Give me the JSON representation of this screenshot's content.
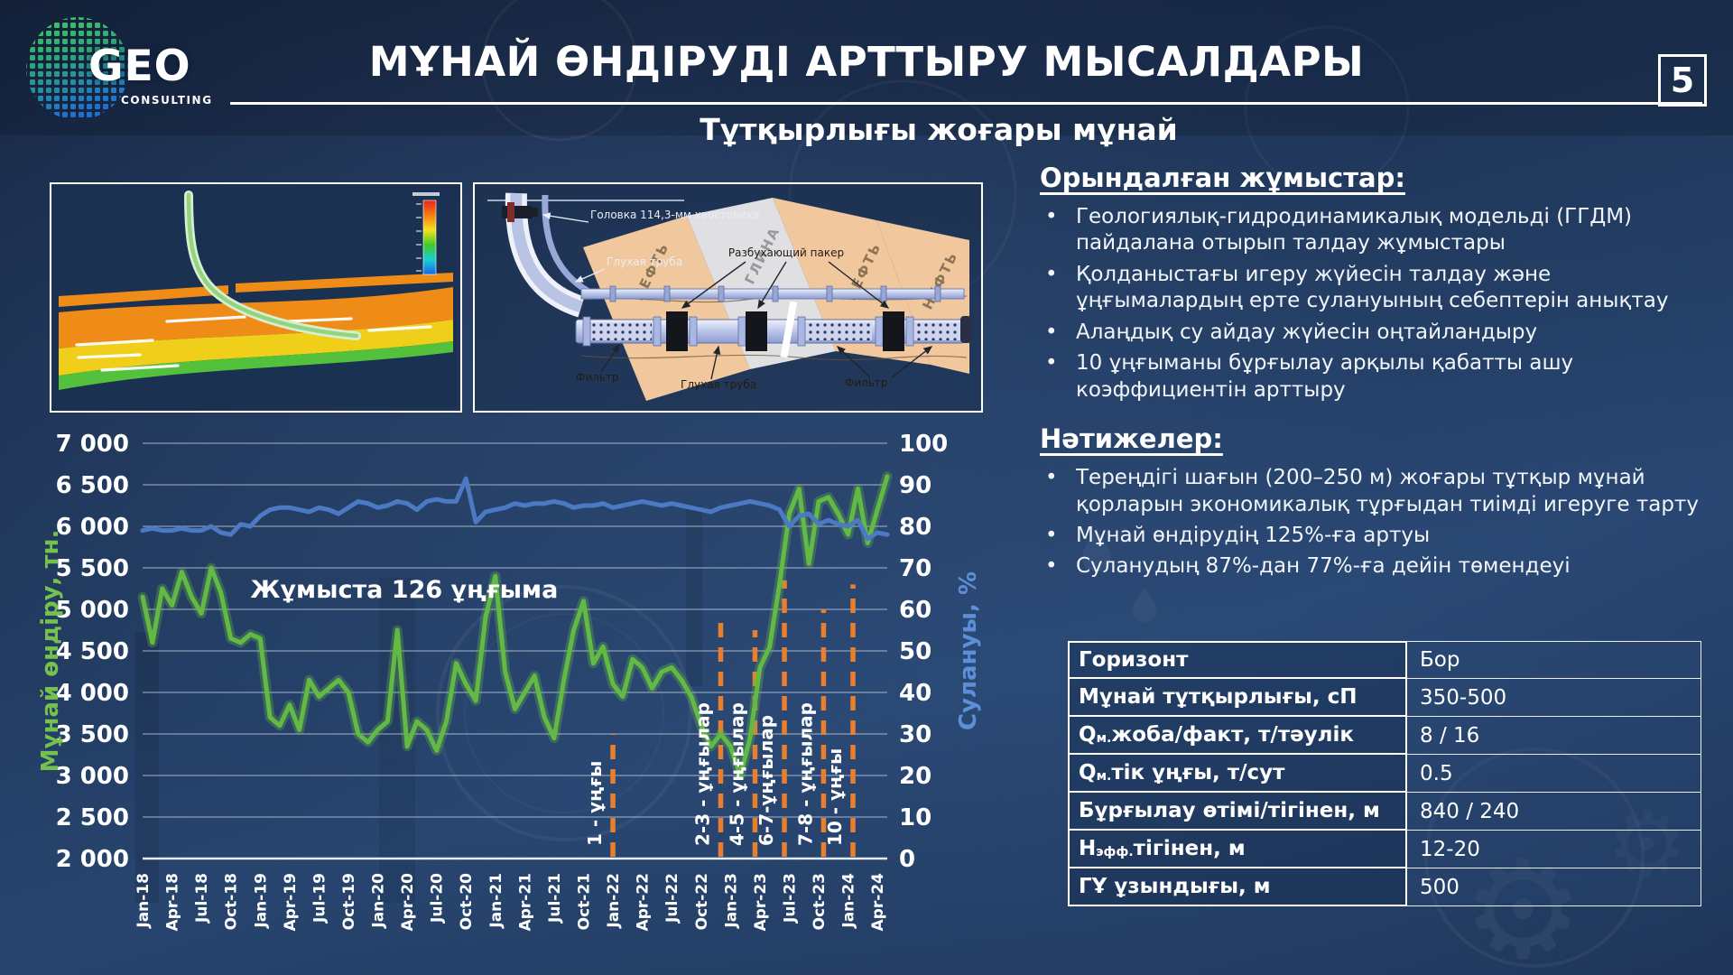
{
  "bullet_char": "•",
  "slide": {
    "logo": {
      "brand": "GEO",
      "tagline": "CONSULTING"
    },
    "title": "МҰНАЙ ӨНДІРУДІ АРТТЫРУ МЫСАЛДАРЫ",
    "slide_number": "5",
    "subtitle": "Тұтқырлығы жоғары мұнай"
  },
  "schematic_labels": {
    "oil_1": "НЕФТЬ",
    "clay": "ГЛИНА",
    "oil_2": "НЕФТЬ",
    "oil_3": "НЕФТЬ",
    "liner_head": "Головка 114,3-мм хвостовика",
    "blind_pipe_top": "Глухая труба",
    "swell_packer": "Разбухающий пакер",
    "filter_left": "Фильтр",
    "blind_pipe_bottom": "Глухая труба",
    "filter_right": "Фильтр"
  },
  "completed_works": {
    "heading": "Орындалған жұмыстар:",
    "items": [
      "Геологиялық-гидродинамикалық модельді (ГГДМ) пайдалана отырып талдау жұмыстары",
      "Қолданыстағы игеру жүйесін талдау және ұңғымалардың ерте сулануының себептерін анықтау",
      "Алаңдық су айдау жүйесін оңтайландыру",
      "10 ұңғыманы бұрғылау арқылы қабатты ашу коэффициентін арттыру"
    ]
  },
  "results": {
    "heading": "Нәтижелер:",
    "items": [
      "Тереңдігі шағын (200–250 м) жоғары тұтқыр мұнай қорларын экономикалық тұрғыдан тиімді игеруге тарту",
      "Мұнай өндірудің 125%-ға артуы",
      "Суланудың 87%-дан 77%-ға дейін төмендеуі"
    ]
  },
  "spec_table": {
    "rows": [
      {
        "p1": "Горизонт",
        "sub": "",
        "p2": "",
        "value": "Бор"
      },
      {
        "p1": "Мұнай тұтқырлығы, сП",
        "sub": "",
        "p2": "",
        "value": "350-500"
      },
      {
        "p1": "Q",
        "sub": "м.",
        "p2": " жоба/факт, т/тәулік",
        "value": "8 / 16"
      },
      {
        "p1": "Q",
        "sub": "м.",
        "p2": " тік ұңғы, т/сут",
        "value": "0.5"
      },
      {
        "p1": "Бұрғылау өтімі/тігінен, м",
        "sub": "",
        "p2": "",
        "value": "840 / 240"
      },
      {
        "p1": "Н",
        "sub": "эфф.",
        "p2": " тігінен, м",
        "value": "12-20"
      },
      {
        "p1": "ГҰ ұзындығы, м",
        "sub": "",
        "p2": "",
        "value": "500"
      }
    ]
  },
  "chart_data": {
    "type": "line",
    "annotation": "Жұмыста 126 ұңғыма",
    "y_left_label": "Мұнай өндіру, тн.",
    "y_right_label": "Сулануы, %",
    "y_left_ticks": [
      "7 000",
      "6 500",
      "6 000",
      "5 500",
      "5 000",
      "4 500",
      "4 000",
      "3 500",
      "3 000",
      "2 500",
      "2 000"
    ],
    "y_left_range": [
      2000,
      7000
    ],
    "y_right_ticks": [
      "100",
      "90",
      "80",
      "70",
      "60",
      "50",
      "40",
      "30",
      "20",
      "10",
      "0"
    ],
    "y_right_range": [
      0,
      100
    ],
    "x_start": "Jan-18",
    "x_step_months": 1,
    "x_tick_every": 3,
    "x_tick_labels": [
      "Jan-18",
      "Apr-18",
      "Jul-18",
      "Oct-18",
      "Jan-19",
      "Apr-19",
      "Jul-19",
      "Oct-19",
      "Jan-20",
      "Apr-20",
      "Jul-20",
      "Oct-20",
      "Jan-21",
      "Apr-21",
      "Jul-21",
      "Oct-21",
      "Jan-22",
      "Apr-22",
      "Jul-22",
      "Oct-22",
      "Jan-23",
      "Apr-23",
      "Jul-23",
      "Oct-23",
      "Jan-24",
      "Apr-24"
    ],
    "grid": true,
    "legend_position": "none",
    "event_color": "#e87f2e",
    "series": [
      {
        "name": "Мұнай өндіру, тн.",
        "axis": "left",
        "color": "#62b944",
        "values": [
          5150,
          4600,
          5250,
          5050,
          5450,
          5150,
          4950,
          5500,
          5200,
          4650,
          4600,
          4700,
          4650,
          3700,
          3600,
          3850,
          3550,
          4150,
          3950,
          4050,
          4150,
          4000,
          3500,
          3400,
          3550,
          3650,
          4750,
          3350,
          3650,
          3550,
          3300,
          3650,
          4350,
          4100,
          3900,
          4900,
          5400,
          4250,
          3800,
          4000,
          4200,
          3700,
          3450,
          4150,
          4750,
          5100,
          4350,
          4550,
          4100,
          3950,
          4400,
          4300,
          4050,
          4250,
          4300,
          4150,
          3950,
          3600,
          3350,
          3500,
          3350,
          3000,
          3450,
          4300,
          4550,
          5300,
          6150,
          6450,
          5550,
          6300,
          6350,
          6150,
          5900,
          6450,
          5800,
          6200,
          6600
        ]
      },
      {
        "name": "Сулануы, %",
        "axis": "right",
        "color": "#4b79c4",
        "values": [
          79,
          79.5,
          79,
          79,
          79.5,
          79,
          79,
          80,
          78.5,
          78,
          80.5,
          80,
          82.5,
          84,
          84.5,
          84.5,
          84,
          83.5,
          84.5,
          84,
          83,
          84.5,
          86,
          85.5,
          84.5,
          85,
          86,
          85.5,
          84,
          86,
          86.5,
          86,
          86,
          91.5,
          81,
          83.5,
          84,
          84.5,
          85.5,
          85,
          85.5,
          85.5,
          86,
          85.5,
          84.5,
          85,
          85,
          85.5,
          84.5,
          85,
          85.5,
          86,
          85.5,
          85,
          85.5,
          85,
          84.5,
          84,
          83.5,
          84.5,
          85,
          85.5,
          86,
          85.5,
          85,
          84,
          80,
          82.5,
          83,
          80.5,
          81.5,
          80.5,
          80,
          81.5,
          77,
          78.5,
          78
        ]
      }
    ],
    "events": [
      {
        "label": "1 - ұңғы",
        "month_index": 48,
        "top_value": 3500
      },
      {
        "label": "2-3 - ұңғылар",
        "month_index": 59,
        "top_value": 4850
      },
      {
        "label": "4-5 - ұңғылар",
        "month_index": 62.5,
        "top_value": 4750
      },
      {
        "label": "6-7-ұңғылар",
        "month_index": 65.5,
        "top_value": 5350
      },
      {
        "label": "7-8 - ұңғылар",
        "month_index": 69.5,
        "top_value": 5000
      },
      {
        "label": "10 - ұңғы",
        "month_index": 72.5,
        "top_value": 5300
      }
    ]
  }
}
